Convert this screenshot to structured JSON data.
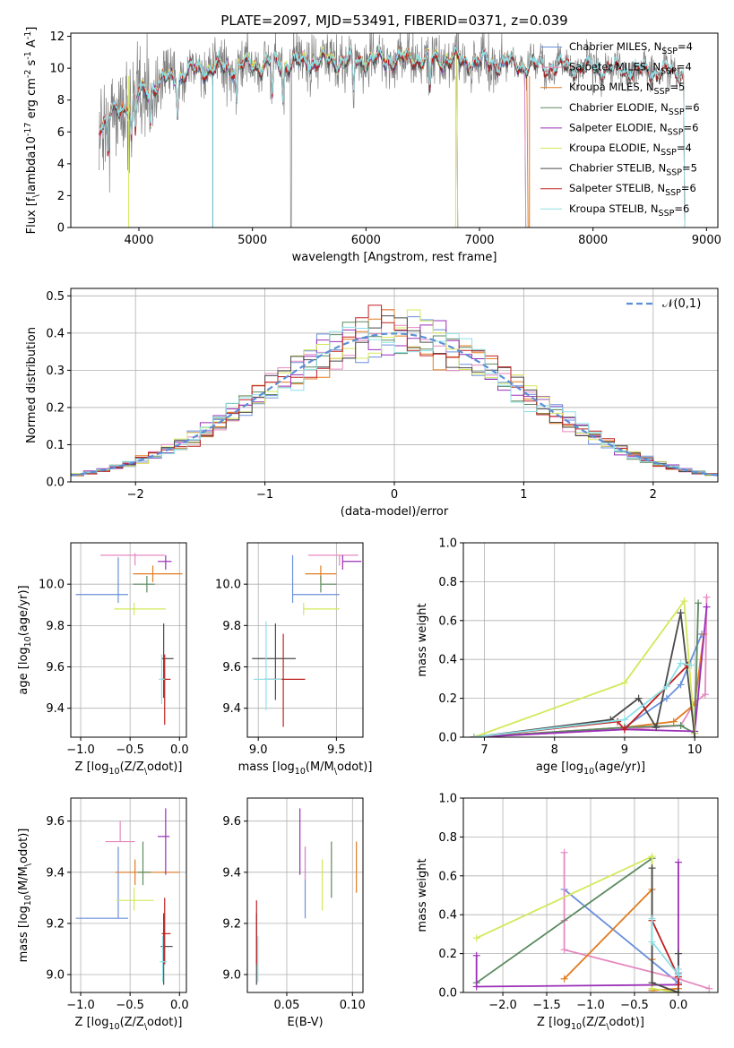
{
  "figure": {
    "title": "PLATE=2097, MJD=53491, FIBERID=0371, z=0.039"
  },
  "colors": {
    "Chabrier MILES": "#6a8fdb",
    "Salpeter MILES": "#e589c0",
    "Kroupa MILES": "#e07c22",
    "Chabrier ELODIE": "#5c8a60",
    "Salpeter ELODIE": "#9a2fb8",
    "Kroupa ELODIE": "#d4e85a",
    "Chabrier STELIB": "#4a4a4a",
    "Salpeter STELIB": "#c02020",
    "Kroupa STELIB": "#8ee0e6"
  },
  "chart_data": [
    {
      "id": "spectrum",
      "type": "line",
      "xlabel": "wavelength [Angstrom, rest frame]",
      "ylabel": "Flux [f$_\\lambda$10$^{-17}$ erg cm$^{-2}$ s$^{-1}$ A$^{-1}$]",
      "xlim": [
        3400,
        9100
      ],
      "ylim": [
        0,
        12.2
      ],
      "xticks": [
        4000,
        5000,
        6000,
        7000,
        8000,
        9000
      ],
      "yticks": [
        0,
        2,
        4,
        6,
        8,
        10,
        12
      ],
      "grid": false,
      "legend_position": "right",
      "data_color": "#808080",
      "series": [
        {
          "name": "Chabrier MILES, N$_{SSP}$=4",
          "color_key": "Chabrier MILES",
          "range": [
            3650,
            7400
          ]
        },
        {
          "name": "Salpeter MILES, N$_{SSP}$=4",
          "color_key": "Salpeter MILES",
          "range": [
            3650,
            7400
          ]
        },
        {
          "name": "Kroupa MILES, N$_{SSP}$=5",
          "color_key": "Kroupa MILES",
          "range": [
            3650,
            7420
          ]
        },
        {
          "name": "Chabrier ELODIE, N$_{SSP}$=6",
          "color_key": "Chabrier ELODIE",
          "range": [
            3900,
            6800
          ]
        },
        {
          "name": "Salpeter ELODIE, N$_{SSP}$=6",
          "color_key": "Salpeter ELODIE",
          "range": [
            3900,
            6800
          ]
        },
        {
          "name": "Kroupa ELODIE, N$_{SSP}$=4",
          "color_key": "Kroupa ELODIE",
          "range": [
            3900,
            6800
          ]
        },
        {
          "name": "Chabrier STELIB, N$_{SSP}$=5",
          "color_key": "Chabrier STELIB",
          "range": [
            3650,
            8800
          ]
        },
        {
          "name": "Salpeter STELIB, N$_{SSP}$=6",
          "color_key": "Salpeter STELIB",
          "range": [
            3650,
            8800
          ]
        },
        {
          "name": "Kroupa STELIB, N$_{SSP}$=6",
          "color_key": "Kroupa STELIB",
          "range": [
            3650,
            8800
          ]
        }
      ],
      "continuum": [
        [
          3650,
          6.5
        ],
        [
          3800,
          7.2
        ],
        [
          4000,
          8.3
        ],
        [
          4200,
          9.2
        ],
        [
          4500,
          9.9
        ],
        [
          5000,
          10.2
        ],
        [
          5500,
          10.4
        ],
        [
          6000,
          10.5
        ],
        [
          6500,
          10.6
        ],
        [
          7000,
          10.4
        ],
        [
          7400,
          10.2
        ],
        [
          8000,
          10.0
        ],
        [
          8800,
          9.7
        ]
      ]
    },
    {
      "id": "residuals",
      "type": "histogram",
      "xlabel": "(data-model)/error",
      "ylabel": "Normed distribution",
      "xlim": [
        -2.5,
        2.5
      ],
      "ylim": [
        0,
        0.52
      ],
      "xticks": [
        -2,
        -1,
        0,
        1,
        2
      ],
      "yticks": [
        0.0,
        0.1,
        0.2,
        0.3,
        0.4,
        0.5
      ],
      "grid": true,
      "bin_width": 0.1,
      "reference_curve": {
        "name": "$\\mathcal{N}(0,1)$",
        "color": "#5b8fd6",
        "style": "dashed"
      },
      "legend_position": "top-right"
    },
    {
      "id": "age_vs_Z",
      "type": "errorbar",
      "xlabel": "Z [log$_{10}$($Z/Z_\\odot$)]",
      "ylabel": "age  [log$_{10}$($age/yr$)]",
      "xlim": [
        -1.1,
        0.07
      ],
      "ylim": [
        9.26,
        10.2
      ],
      "xticks": [
        -1.0,
        -0.5,
        0.0
      ],
      "yticks": [
        9.4,
        9.6,
        9.8,
        10.0
      ],
      "grid": true,
      "points": [
        {
          "key": "Chabrier MILES",
          "x": -0.62,
          "y": 9.95,
          "xerr": [
            0.43,
            0.1
          ],
          "yerr": [
            0.04,
            0.18
          ]
        },
        {
          "key": "Salpeter MILES",
          "x": -0.45,
          "y": 10.14,
          "xerr": [
            0.35,
            0.3
          ],
          "yerr": [
            0.05,
            0.01
          ]
        },
        {
          "key": "Kroupa MILES",
          "x": -0.27,
          "y": 10.05,
          "xerr": [
            0.2,
            0.3
          ],
          "yerr": [
            0.04,
            0.04
          ]
        },
        {
          "key": "Chabrier ELODIE",
          "x": -0.33,
          "y": 10.0,
          "xerr": [
            0.14,
            0.08
          ],
          "yerr": [
            0.04,
            0.04
          ]
        },
        {
          "key": "Salpeter ELODIE",
          "x": -0.14,
          "y": 10.11,
          "xerr": [
            0.08,
            0.06
          ],
          "yerr": [
            0.04,
            0.03
          ]
        },
        {
          "key": "Kroupa ELODIE",
          "x": -0.46,
          "y": 9.88,
          "xerr": [
            0.2,
            0.32
          ],
          "yerr": [
            0.03,
            0.03
          ]
        },
        {
          "key": "Chabrier STELIB",
          "x": -0.16,
          "y": 9.64,
          "xerr": [
            0.02,
            0.1
          ],
          "yerr": [
            0.19,
            0.17
          ]
        },
        {
          "key": "Salpeter STELIB",
          "x": -0.15,
          "y": 9.54,
          "xerr": [
            0.03,
            0.06
          ],
          "yerr": [
            0.22,
            0.12
          ]
        },
        {
          "key": "Kroupa STELIB",
          "x": -0.18,
          "y": 9.54,
          "xerr": [
            0.03,
            0.03
          ],
          "yerr": [
            0.12,
            0.12
          ]
        }
      ]
    },
    {
      "id": "age_vs_mass",
      "type": "errorbar",
      "xlabel": "mass [log$_{10}$($M/M_\\odot$)]",
      "ylabel": "",
      "xlim": [
        8.93,
        9.67
      ],
      "ylim": [
        9.26,
        10.2
      ],
      "xticks": [
        9.0,
        9.5
      ],
      "yticks": [
        9.4,
        9.6,
        9.8,
        10.0
      ],
      "grid": true,
      "points": [
        {
          "key": "Chabrier MILES",
          "x": 9.22,
          "y": 9.95,
          "xerr": [
            0.0,
            0.3
          ],
          "yerr": [
            0.04,
            0.19
          ]
        },
        {
          "key": "Salpeter MILES",
          "x": 9.52,
          "y": 10.14,
          "xerr": [
            0.2,
            0.12
          ],
          "yerr": [
            0.05,
            0.0
          ]
        },
        {
          "key": "Kroupa MILES",
          "x": 9.4,
          "y": 10.05,
          "xerr": [
            0.1,
            0.1
          ],
          "yerr": [
            0.04,
            0.04
          ]
        },
        {
          "key": "Chabrier ELODIE",
          "x": 9.4,
          "y": 10.0,
          "xerr": [
            0.0,
            0.1
          ],
          "yerr": [
            0.04,
            0.04
          ]
        },
        {
          "key": "Salpeter ELODIE",
          "x": 9.54,
          "y": 10.11,
          "xerr": [
            0.0,
            0.12
          ],
          "yerr": [
            0.04,
            0.03
          ]
        },
        {
          "key": "Kroupa ELODIE",
          "x": 9.29,
          "y": 9.88,
          "xerr": [
            0.0,
            0.23
          ],
          "yerr": [
            0.03,
            0.03
          ]
        },
        {
          "key": "Chabrier STELIB",
          "x": 9.11,
          "y": 9.64,
          "xerr": [
            0.15,
            0.13
          ],
          "yerr": [
            0.2,
            0.17
          ]
        },
        {
          "key": "Salpeter STELIB",
          "x": 9.16,
          "y": 9.54,
          "xerr": [
            0.12,
            0.14
          ],
          "yerr": [
            0.23,
            0.22
          ]
        },
        {
          "key": "Kroupa STELIB",
          "x": 9.05,
          "y": 9.54,
          "xerr": [
            0.08,
            0.1
          ],
          "yerr": [
            0.15,
            0.28
          ]
        }
      ]
    },
    {
      "id": "weight_vs_age",
      "type": "line",
      "xlabel": "age  [log$_{10}$($age/yr$)]",
      "ylabel": "mass weight",
      "xlim": [
        6.7,
        10.33
      ],
      "ylim": [
        0.0,
        1.0
      ],
      "xticks": [
        7,
        8,
        9,
        10
      ],
      "yticks": [
        0.0,
        0.2,
        0.4,
        0.6,
        0.8,
        1.0
      ],
      "grid": true,
      "series": [
        {
          "key": "Chabrier MILES",
          "x": [
            6.85,
            9.0,
            9.6,
            9.8,
            10.1
          ],
          "y": [
            0.0,
            0.05,
            0.2,
            0.27,
            0.53
          ]
        },
        {
          "key": "Salpeter MILES",
          "x": [
            6.85,
            9.0,
            9.8,
            10.0,
            10.15,
            10.17
          ],
          "y": [
            0.0,
            0.04,
            0.06,
            0.18,
            0.22,
            0.72
          ]
        },
        {
          "key": "Kroupa MILES",
          "x": [
            6.85,
            9.0,
            9.7,
            10.0,
            10.13
          ],
          "y": [
            0.0,
            0.05,
            0.08,
            0.17,
            0.53
          ]
        },
        {
          "key": "Chabrier ELODIE",
          "x": [
            6.85,
            9.0,
            9.8,
            10.0,
            10.05
          ],
          "y": [
            0.0,
            0.05,
            0.06,
            0.02,
            0.69
          ]
        },
        {
          "key": "Salpeter ELODIE",
          "x": [
            6.85,
            9.0,
            10.0,
            10.17
          ],
          "y": [
            0.0,
            0.04,
            0.03,
            0.67
          ]
        },
        {
          "key": "Kroupa ELODIE",
          "x": [
            6.85,
            9.0,
            9.85,
            10.0
          ],
          "y": [
            0.0,
            0.28,
            0.7,
            0.02
          ]
        },
        {
          "key": "Chabrier STELIB",
          "x": [
            6.85,
            8.8,
            9.2,
            9.45,
            9.8,
            10.0
          ],
          "y": [
            0.0,
            0.09,
            0.2,
            0.05,
            0.64,
            0.0
          ]
        },
        {
          "key": "Salpeter STELIB",
          "x": [
            6.85,
            8.9,
            9.0,
            9.9
          ],
          "y": [
            0.0,
            0.08,
            0.04,
            0.37
          ]
        },
        {
          "key": "Kroupa STELIB",
          "x": [
            6.85,
            9.0,
            9.6,
            9.8,
            9.95
          ],
          "y": [
            0.0,
            0.09,
            0.26,
            0.38,
            0.37
          ]
        }
      ]
    },
    {
      "id": "mass_vs_Z",
      "type": "errorbar",
      "xlabel": "Z [log$_{10}$($Z/Z_\\odot$)]",
      "ylabel": "mass [log$_{10}$($M/M_\\odot$)]",
      "xlim": [
        -1.1,
        0.07
      ],
      "ylim": [
        8.93,
        9.69
      ],
      "xticks": [
        -1.0,
        -0.5,
        0.0
      ],
      "yticks": [
        9.0,
        9.2,
        9.4,
        9.6
      ],
      "grid": true,
      "points": [
        {
          "key": "Chabrier MILES",
          "x": -0.62,
          "y": 9.22,
          "xerr": [
            0.43,
            0.1
          ],
          "yerr": [
            0.0,
            0.28
          ]
        },
        {
          "key": "Salpeter MILES",
          "x": -0.6,
          "y": 9.52,
          "xerr": [
            0.15,
            0.15
          ],
          "yerr": [
            0.0,
            0.08
          ]
        },
        {
          "key": "Kroupa MILES",
          "x": -0.45,
          "y": 9.4,
          "xerr": [
            0.2,
            0.45
          ],
          "yerr": [
            0.05,
            0.05
          ]
        },
        {
          "key": "Chabrier ELODIE",
          "x": -0.37,
          "y": 9.4,
          "xerr": [
            0.05,
            0.08
          ],
          "yerr": [
            0.05,
            0.12
          ]
        },
        {
          "key": "Salpeter ELODIE",
          "x": -0.14,
          "y": 9.54,
          "xerr": [
            0.08,
            0.04
          ],
          "yerr": [
            0.15,
            0.11
          ]
        },
        {
          "key": "Kroupa ELODIE",
          "x": -0.46,
          "y": 9.29,
          "xerr": [
            0.18,
            0.2
          ],
          "yerr": [
            0.04,
            0.05
          ]
        },
        {
          "key": "Chabrier STELIB",
          "x": -0.16,
          "y": 9.11,
          "xerr": [
            0.03,
            0.09
          ],
          "yerr": [
            0.15,
            0.13
          ]
        },
        {
          "key": "Salpeter STELIB",
          "x": -0.15,
          "y": 9.16,
          "xerr": [
            0.03,
            0.06
          ],
          "yerr": [
            0.12,
            0.14
          ]
        },
        {
          "key": "Kroupa STELIB",
          "x": -0.17,
          "y": 9.05,
          "xerr": [
            0.03,
            0.04
          ],
          "yerr": [
            0.08,
            0.1
          ]
        }
      ]
    },
    {
      "id": "mass_vs_ebv",
      "type": "errorbar",
      "xlabel": "E(B-V)",
      "ylabel": "",
      "xlim": [
        0.02,
        0.108
      ],
      "ylim": [
        8.93,
        9.69
      ],
      "xticks": [
        0.05,
        0.1
      ],
      "yticks": [
        9.0,
        9.2,
        9.4,
        9.6
      ],
      "grid": true,
      "points": [
        {
          "key": "Chabrier MILES",
          "x": 0.064,
          "y": 9.22,
          "xerr": [
            0,
            0
          ],
          "yerr": [
            0.0,
            0.28
          ]
        },
        {
          "key": "Salpeter MILES",
          "x": 0.064,
          "y": 9.42,
          "xerr": [
            0,
            0
          ],
          "yerr": [
            0.05,
            0.08
          ]
        },
        {
          "key": "Kroupa MILES",
          "x": 0.103,
          "y": 9.42,
          "xerr": [
            0,
            0
          ],
          "yerr": [
            0.1,
            0.1
          ]
        },
        {
          "key": "Chabrier ELODIE",
          "x": 0.084,
          "y": 9.4,
          "xerr": [
            0,
            0
          ],
          "yerr": [
            0.1,
            0.12
          ]
        },
        {
          "key": "Salpeter ELODIE",
          "x": 0.06,
          "y": 9.52,
          "xerr": [
            0,
            0
          ],
          "yerr": [
            0.13,
            0.13
          ]
        },
        {
          "key": "Kroupa ELODIE",
          "x": 0.077,
          "y": 9.35,
          "xerr": [
            0,
            0
          ],
          "yerr": [
            0.1,
            0.1
          ]
        },
        {
          "key": "Chabrier STELIB",
          "x": 0.027,
          "y": 9.11,
          "xerr": [
            0,
            0
          ],
          "yerr": [
            0.15,
            0.13
          ]
        },
        {
          "key": "Salpeter STELIB",
          "x": 0.027,
          "y": 9.16,
          "xerr": [
            0,
            0
          ],
          "yerr": [
            0.12,
            0.13
          ]
        },
        {
          "key": "Kroupa STELIB",
          "x": 0.028,
          "y": 9.05,
          "xerr": [
            0,
            0
          ],
          "yerr": [
            0.08,
            0.1
          ]
        }
      ]
    },
    {
      "id": "weight_vs_Z",
      "type": "line",
      "xlabel": "Z [log$_{10}$($Z/Z_\\odot$)]",
      "ylabel": "mass weight",
      "xlim": [
        -2.45,
        0.45
      ],
      "ylim": [
        0.0,
        1.0
      ],
      "xticks": [
        -2.0,
        -1.5,
        -1.0,
        -0.5,
        0.0
      ],
      "yticks": [
        0.0,
        0.2,
        0.4,
        0.6,
        0.8,
        1.0
      ],
      "grid": true,
      "series": [
        {
          "key": "Chabrier MILES",
          "x": [
            -1.3,
            0.0,
            0.0
          ],
          "y": [
            0.53,
            0.05,
            0.1
          ]
        },
        {
          "key": "Salpeter MILES",
          "x": [
            -1.3,
            -1.3,
            -1.3,
            0.0,
            0.35
          ],
          "y": [
            0.72,
            0.37,
            0.22,
            0.07,
            0.02
          ]
        },
        {
          "key": "Kroupa MILES",
          "x": [
            -1.3,
            -0.3,
            -0.3,
            -0.3,
            0.0
          ],
          "y": [
            0.07,
            0.53,
            0.17,
            0.01,
            0.02
          ]
        },
        {
          "key": "Chabrier ELODIE",
          "x": [
            -2.3,
            -0.3,
            -0.3
          ],
          "y": [
            0.05,
            0.69,
            0.02
          ]
        },
        {
          "key": "Salpeter ELODIE",
          "x": [
            -2.3,
            -2.3,
            0.0,
            0.0
          ],
          "y": [
            0.19,
            0.03,
            0.04,
            0.67
          ]
        },
        {
          "key": "Kroupa ELODIE",
          "x": [
            -2.3,
            -0.3,
            -0.3,
            0.0
          ],
          "y": [
            0.28,
            0.7,
            0.02,
            0.0
          ]
        },
        {
          "key": "Chabrier STELIB",
          "x": [
            -0.3,
            -0.3,
            0.0,
            0.0,
            0.0
          ],
          "y": [
            0.64,
            0.05,
            0.0,
            0.2,
            0.09
          ]
        },
        {
          "key": "Salpeter STELIB",
          "x": [
            -0.3,
            0.0,
            0.0
          ],
          "y": [
            0.37,
            0.08,
            0.04
          ]
        },
        {
          "key": "Kroupa STELIB",
          "x": [
            -0.3,
            -0.3,
            0.0,
            0.0
          ],
          "y": [
            0.38,
            0.26,
            0.09,
            0.12
          ]
        }
      ]
    }
  ]
}
